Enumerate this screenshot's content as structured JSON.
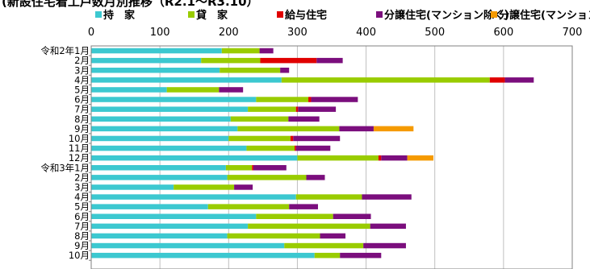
{
  "title": "(新設住宅着工戸数月別推移（R2.1～R3.10）",
  "chart_data": {
    "type": "bar",
    "orientation": "horizontal",
    "stacked": true,
    "title": "(新設住宅着工戸数月別推移（R2.1～R3.10）",
    "xlabel": "",
    "ylabel": "",
    "xlim": [
      0,
      700
    ],
    "xticks": [
      0,
      100,
      200,
      300,
      400,
      500,
      600,
      700
    ],
    "grid": true,
    "legend_position": "top",
    "categories": [
      "令和2年1月",
      "2月",
      "3月",
      "4月",
      "5月",
      "6月",
      "7月",
      "8月",
      "9月",
      "10月",
      "11月",
      "12月",
      "令和3年1月",
      "2月",
      "3月",
      "4月",
      "5月",
      "6月",
      "7月",
      "8月",
      "9月",
      "10月"
    ],
    "series": [
      {
        "name": "持　家",
        "color": "#3CC8D0",
        "values": [
          190,
          160,
          187,
          277,
          110,
          240,
          228,
          203,
          213,
          200,
          226,
          300,
          196,
          198,
          120,
          298,
          170,
          240,
          228,
          198,
          281,
          325
        ]
      },
      {
        "name": "貸　家",
        "color": "#99CC00",
        "values": [
          55,
          86,
          88,
          303,
          76,
          76,
          70,
          84,
          148,
          90,
          70,
          118,
          38,
          115,
          88,
          96,
          118,
          112,
          178,
          135,
          115,
          37
        ]
      },
      {
        "name": "給与住宅",
        "color": "#E00000",
        "values": [
          0,
          82,
          0,
          22,
          0,
          4,
          3,
          0,
          0,
          4,
          2,
          4,
          2,
          0,
          0,
          0,
          0,
          0,
          0,
          0,
          0,
          0
        ]
      },
      {
        "name": "分譲住宅(マンション除く)",
        "color": "#7B0E7D",
        "values": [
          20,
          38,
          13,
          42,
          35,
          68,
          55,
          45,
          50,
          68,
          50,
          38,
          48,
          27,
          27,
          72,
          42,
          55,
          52,
          37,
          62,
          60
        ]
      },
      {
        "name": "分譲住宅(マンション)",
        "color": "#F59A00",
        "values": [
          0,
          0,
          0,
          0,
          0,
          0,
          0,
          0,
          58,
          0,
          0,
          38,
          0,
          0,
          0,
          0,
          0,
          0,
          0,
          0,
          0,
          0
        ]
      }
    ]
  }
}
